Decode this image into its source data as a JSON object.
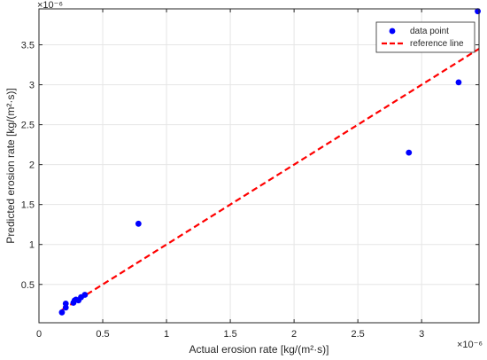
{
  "chart_data": {
    "type": "scatter",
    "xlabel": "Actual erosion rate [kg/(m²·s)]",
    "ylabel": "Predicted erosion rate [kg/(m²·s)]",
    "x_exponent_label": "×10⁻⁶",
    "y_exponent_label": "×10⁻⁶",
    "xlim": [
      0,
      3.45
    ],
    "ylim": [
      0.02,
      3.95
    ],
    "x_ticks": [
      0,
      0.5,
      1,
      1.5,
      2,
      2.5,
      3
    ],
    "x_tick_labels": [
      "0",
      "0.5",
      "1",
      "1.5",
      "2",
      "2.5",
      "3"
    ],
    "y_ticks": [
      0.5,
      1,
      1.5,
      2,
      2.5,
      3,
      3.5
    ],
    "y_tick_labels": [
      "0.5",
      "1",
      "1.5",
      "2",
      "2.5",
      "3",
      "3.5"
    ],
    "grid": true,
    "legend_position": "top-right",
    "series": [
      {
        "name": "data point",
        "kind": "scatter",
        "color": "#0000ff",
        "x": [
          0.18,
          0.21,
          0.21,
          0.27,
          0.28,
          0.29,
          0.31,
          0.33,
          0.36,
          0.78,
          2.9,
          3.29,
          3.44
        ],
        "y": [
          0.15,
          0.21,
          0.26,
          0.27,
          0.3,
          0.31,
          0.3,
          0.34,
          0.37,
          1.26,
          2.15,
          3.03,
          3.92
        ]
      },
      {
        "name": "reference line",
        "kind": "line",
        "style": "dashed",
        "color": "#ff0000",
        "x": [
          0.18,
          3.45
        ],
        "y": [
          0.18,
          3.45
        ]
      }
    ]
  }
}
